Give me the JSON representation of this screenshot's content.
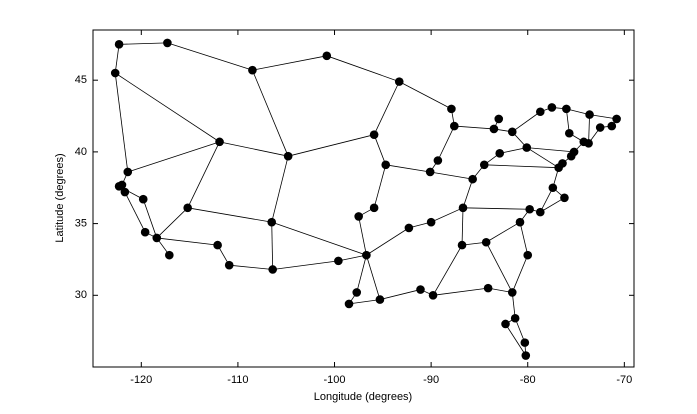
{
  "chart_data": {
    "type": "graph",
    "x_label": "Longitude (degrees)",
    "y_label": "Latitude (degrees)",
    "x": [
      -122.3,
      -117.3,
      -122.7,
      -108.5,
      -100.8,
      -93.3,
      -87.9,
      -87.6,
      -111.9,
      -104.8,
      -95.9,
      -94.7,
      -89.3,
      -90.1,
      -85.7,
      -84.5,
      -83.0,
      -83.5,
      -81.6,
      -82.9,
      -80.1,
      -78.7,
      -77.5,
      -76.0,
      -73.6,
      -72.5,
      -71.3,
      -70.8,
      -75.7,
      -74.2,
      -73.7,
      -75.2,
      -75.5,
      -76.4,
      -76.8,
      -77.4,
      -76.2,
      -79.8,
      -78.7,
      -80.8,
      -80.0,
      -81.6,
      -81.3,
      -82.3,
      -80.3,
      -80.2,
      -84.3,
      -84.1,
      -86.8,
      -86.7,
      -90.0,
      -92.3,
      -89.8,
      -91.1,
      -95.3,
      -97.7,
      -98.5,
      -96.7,
      -95.9,
      -97.5,
      -99.6,
      -106.5,
      -106.4,
      -110.9,
      -112.1,
      -115.2,
      -117.1,
      -118.4,
      -119.6,
      -119.8,
      -121.4,
      -122.3,
      -122.0,
      -121.7
    ],
    "y": [
      47.5,
      47.6,
      45.5,
      45.7,
      46.7,
      44.9,
      43.0,
      41.8,
      40.7,
      39.7,
      41.2,
      39.1,
      39.4,
      38.6,
      38.1,
      39.1,
      42.3,
      41.6,
      41.4,
      39.9,
      40.3,
      42.8,
      43.1,
      43.0,
      42.6,
      41.7,
      41.8,
      42.3,
      41.3,
      40.7,
      40.6,
      40.0,
      39.7,
      39.2,
      38.9,
      37.5,
      36.8,
      36.0,
      35.8,
      35.1,
      32.8,
      30.2,
      28.4,
      28.0,
      26.7,
      25.8,
      33.7,
      30.5,
      33.5,
      36.1,
      35.1,
      34.7,
      30.0,
      30.4,
      29.7,
      30.2,
      29.4,
      32.8,
      36.1,
      35.5,
      32.4,
      35.1,
      31.8,
      32.1,
      33.5,
      36.1,
      32.8,
      34.0,
      34.4,
      36.7,
      38.6,
      37.6,
      37.7,
      37.2
    ],
    "edges": [
      [
        0,
        1
      ],
      [
        0,
        2
      ],
      [
        1,
        3
      ],
      [
        2,
        70
      ],
      [
        2,
        8
      ],
      [
        3,
        4
      ],
      [
        3,
        9
      ],
      [
        4,
        5
      ],
      [
        5,
        10
      ],
      [
        5,
        6
      ],
      [
        6,
        7
      ],
      [
        7,
        12
      ],
      [
        7,
        17
      ],
      [
        8,
        70
      ],
      [
        8,
        9
      ],
      [
        8,
        65
      ],
      [
        9,
        10
      ],
      [
        9,
        61
      ],
      [
        10,
        11
      ],
      [
        11,
        13
      ],
      [
        11,
        58
      ],
      [
        12,
        13
      ],
      [
        13,
        14
      ],
      [
        14,
        15
      ],
      [
        14,
        49
      ],
      [
        15,
        19
      ],
      [
        15,
        34
      ],
      [
        16,
        17
      ],
      [
        17,
        18
      ],
      [
        18,
        21
      ],
      [
        18,
        20
      ],
      [
        19,
        20
      ],
      [
        20,
        31
      ],
      [
        20,
        34
      ],
      [
        21,
        22
      ],
      [
        22,
        23
      ],
      [
        23,
        24
      ],
      [
        23,
        28
      ],
      [
        24,
        27
      ],
      [
        24,
        30
      ],
      [
        27,
        26
      ],
      [
        26,
        25
      ],
      [
        25,
        30
      ],
      [
        28,
        29
      ],
      [
        29,
        30
      ],
      [
        29,
        31
      ],
      [
        31,
        32
      ],
      [
        32,
        33
      ],
      [
        33,
        34
      ],
      [
        34,
        35
      ],
      [
        35,
        36
      ],
      [
        35,
        38
      ],
      [
        36,
        38
      ],
      [
        38,
        37
      ],
      [
        37,
        39
      ],
      [
        37,
        49
      ],
      [
        39,
        46
      ],
      [
        39,
        40
      ],
      [
        40,
        41
      ],
      [
        46,
        48
      ],
      [
        46,
        41
      ],
      [
        41,
        42
      ],
      [
        41,
        47
      ],
      [
        47,
        52
      ],
      [
        42,
        43
      ],
      [
        42,
        44
      ],
      [
        44,
        45
      ],
      [
        43,
        45
      ],
      [
        48,
        49
      ],
      [
        48,
        52
      ],
      [
        49,
        50
      ],
      [
        50,
        51
      ],
      [
        51,
        57
      ],
      [
        57,
        59
      ],
      [
        59,
        58
      ],
      [
        57,
        54
      ],
      [
        57,
        55
      ],
      [
        55,
        56
      ],
      [
        54,
        56
      ],
      [
        54,
        53
      ],
      [
        53,
        52
      ],
      [
        57,
        60
      ],
      [
        60,
        62
      ],
      [
        62,
        61
      ],
      [
        62,
        63
      ],
      [
        63,
        64
      ],
      [
        64,
        67
      ],
      [
        61,
        65
      ],
      [
        61,
        57
      ],
      [
        65,
        67
      ],
      [
        67,
        66
      ],
      [
        67,
        68
      ],
      [
        68,
        73
      ],
      [
        69,
        67
      ],
      [
        69,
        71
      ],
      [
        70,
        72
      ],
      [
        71,
        72
      ],
      [
        71,
        73
      ]
    ],
    "xlim": [
      -125,
      -69
    ],
    "ylim": [
      25,
      48.5
    ],
    "xticks": [
      -120,
      -110,
      -100,
      -90,
      -80,
      -70
    ],
    "yticks": [
      30,
      35,
      40,
      45
    ],
    "color": "#000000"
  }
}
